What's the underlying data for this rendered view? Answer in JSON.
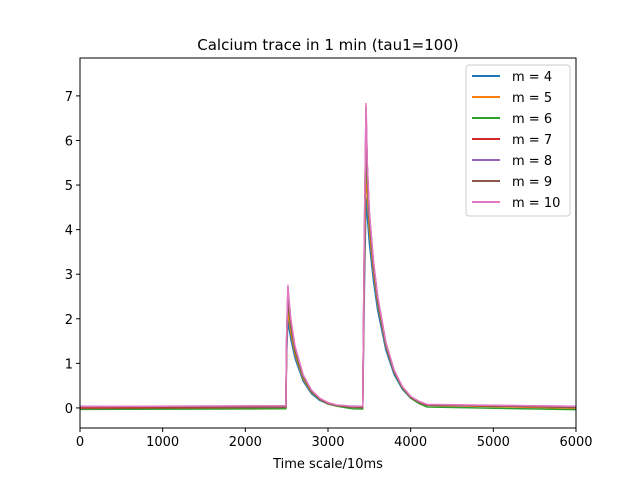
{
  "chart_data": {
    "type": "line",
    "title": "Calcium trace in 1 min (tau1=100)",
    "xlabel": "Time scale/10ms",
    "ylabel": "",
    "xlim": [
      0,
      6000
    ],
    "ylim": [
      -0.45,
      7.85
    ],
    "xticks": [
      "0",
      "1000",
      "2000",
      "3000",
      "4000",
      "5000",
      "6000"
    ],
    "yticks": [
      "0",
      "1",
      "2",
      "3",
      "4",
      "5",
      "6",
      "7"
    ],
    "legend_position": "top-right",
    "grid": false,
    "x": [
      0,
      2490,
      2500,
      2515,
      2525,
      2550,
      2600,
      2700,
      2800,
      2900,
      3000,
      3100,
      3200,
      3300,
      3420,
      3440,
      3460,
      3475,
      3500,
      3550,
      3600,
      3700,
      3800,
      3900,
      4000,
      4100,
      4200,
      6000
    ],
    "series": [
      {
        "name": "m = 4",
        "color": "#1f77b4",
        "values": [
          0.02,
          0.02,
          1.2,
          1.95,
          1.85,
          1.55,
          1.12,
          0.6,
          0.32,
          0.17,
          0.09,
          0.05,
          0.03,
          0.03,
          0.03,
          2.6,
          4.7,
          4.3,
          3.7,
          2.85,
          2.2,
          1.3,
          0.75,
          0.42,
          0.22,
          0.12,
          0.06,
          0.02
        ]
      },
      {
        "name": "m = 5",
        "color": "#ff7f0e",
        "values": [
          0.0,
          0.0,
          1.4,
          2.25,
          2.05,
          1.7,
          1.22,
          0.65,
          0.35,
          0.19,
          0.1,
          0.05,
          0.03,
          0.02,
          0.02,
          3.1,
          5.4,
          4.8,
          4.0,
          3.05,
          2.35,
          1.38,
          0.8,
          0.45,
          0.24,
          0.13,
          0.06,
          0.0
        ]
      },
      {
        "name": "m = 6",
        "color": "#2ca02c",
        "values": [
          -0.03,
          -0.03,
          1.5,
          2.45,
          2.25,
          1.82,
          1.28,
          0.68,
          0.36,
          0.19,
          0.09,
          0.04,
          0.01,
          -0.01,
          -0.02,
          3.5,
          6.0,
          5.1,
          4.2,
          3.15,
          2.4,
          1.4,
          0.8,
          0.44,
          0.22,
          0.1,
          0.03,
          -0.03
        ]
      },
      {
        "name": "m = 7",
        "color": "#d62728",
        "values": [
          0.01,
          0.01,
          1.55,
          2.55,
          2.35,
          1.9,
          1.33,
          0.71,
          0.38,
          0.2,
          0.1,
          0.05,
          0.03,
          0.02,
          0.02,
          3.7,
          6.4,
          5.3,
          4.3,
          3.2,
          2.45,
          1.43,
          0.82,
          0.46,
          0.24,
          0.13,
          0.06,
          0.01
        ]
      },
      {
        "name": "m = 8",
        "color": "#9467bd",
        "values": [
          0.03,
          0.03,
          1.6,
          2.65,
          2.42,
          1.95,
          1.36,
          0.72,
          0.39,
          0.21,
          0.11,
          0.06,
          0.04,
          0.03,
          0.03,
          3.8,
          6.6,
          5.4,
          4.35,
          3.25,
          2.48,
          1.45,
          0.84,
          0.47,
          0.25,
          0.14,
          0.07,
          0.03
        ]
      },
      {
        "name": "m = 9",
        "color": "#8c564b",
        "values": [
          0.02,
          0.02,
          1.62,
          2.7,
          2.46,
          1.97,
          1.37,
          0.73,
          0.39,
          0.21,
          0.11,
          0.06,
          0.04,
          0.03,
          0.02,
          3.9,
          6.75,
          5.45,
          4.38,
          3.27,
          2.5,
          1.46,
          0.84,
          0.47,
          0.25,
          0.14,
          0.07,
          0.02
        ]
      },
      {
        "name": "m = 10",
        "color": "#e377c2",
        "values": [
          0.04,
          0.04,
          1.65,
          2.75,
          2.5,
          2.0,
          1.39,
          0.74,
          0.4,
          0.22,
          0.12,
          0.07,
          0.05,
          0.04,
          0.04,
          4.0,
          6.83,
          5.5,
          4.4,
          3.3,
          2.52,
          1.47,
          0.85,
          0.48,
          0.26,
          0.15,
          0.08,
          0.04
        ]
      }
    ]
  }
}
